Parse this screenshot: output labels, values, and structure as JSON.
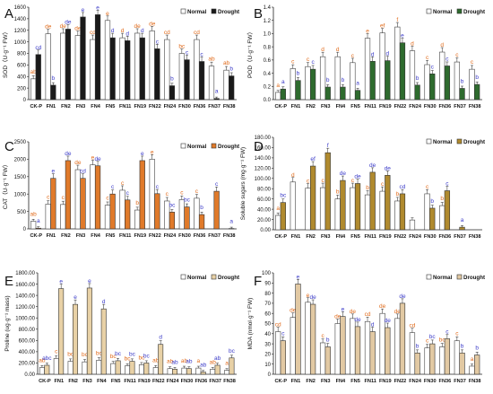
{
  "chart_data": [
    {
      "type": "bar",
      "panel": "A",
      "ylabel": "SOD（U·g⁻¹ FW）",
      "ylim": [
        0,
        1600
      ],
      "yticks": [
        0,
        200,
        400,
        600,
        800,
        1000,
        1200,
        1400,
        1600
      ],
      "tick_decimals": 0,
      "legend_placement": "top-right",
      "categories": [
        "CK-P",
        "FN1",
        "FN2",
        "FN3",
        "FN4",
        "FN5",
        "FN11",
        "FN19",
        "FN22",
        "FN24",
        "FN30",
        "FN36",
        "FN37",
        "FN38"
      ],
      "series": [
        {
          "name": "Normal",
          "color": "#ffffff",
          "values": [
            360,
            1140,
            1150,
            1110,
            1040,
            1370,
            1070,
            1150,
            1190,
            1040,
            800,
            1040,
            580,
            510
          ],
          "labels": [
            "ab",
            "de",
            "de",
            "de",
            "cd",
            "e",
            "d",
            "de",
            "de",
            "cd",
            "bc",
            "cd",
            "ab",
            "ab"
          ]
        },
        {
          "name": "Drought",
          "color": "#1a1a1a",
          "values": [
            780,
            250,
            1220,
            1430,
            1470,
            1070,
            1020,
            1070,
            880,
            240,
            690,
            660,
            20,
            410
          ],
          "labels": [
            "cd",
            "b",
            "de",
            "e",
            "e",
            "d",
            "d",
            "d",
            "c",
            "b",
            "c",
            "c",
            "a",
            "b"
          ]
        }
      ]
    },
    {
      "type": "bar",
      "panel": "B",
      "ylabel": "POD（U·g⁻¹ FW）",
      "ylim": [
        0,
        1.4
      ],
      "yticks": [
        0,
        0.2,
        0.4,
        0.6,
        0.8,
        1.0,
        1.2,
        1.4
      ],
      "tick_decimals": 1,
      "legend_placement": "top-right",
      "categories": [
        "CK-P",
        "FN1",
        "FN2",
        "FN3",
        "FN4",
        "FN5",
        "FN11",
        "FN19",
        "FN22",
        "FN24",
        "FN30",
        "FN36",
        "FN37",
        "FN38"
      ],
      "series": [
        {
          "name": "Normal",
          "color": "#ffffff",
          "values": [
            0.11,
            0.47,
            0.5,
            0.65,
            0.65,
            0.56,
            0.93,
            1.01,
            1.1,
            0.74,
            0.53,
            0.72,
            0.57,
            0.46
          ],
          "labels": [
            "a",
            "c",
            "c",
            "d",
            "d",
            "c",
            "e",
            "ef",
            "f",
            "d",
            "c",
            "d",
            "c",
            "c"
          ]
        },
        {
          "name": "Drought",
          "color": "#2e6b2e",
          "values": [
            0.16,
            0.29,
            0.46,
            0.19,
            0.19,
            0.14,
            0.58,
            0.59,
            0.86,
            0.22,
            0.39,
            0.51,
            0.17,
            0.23
          ],
          "labels": [
            "a",
            "b",
            "c",
            "b",
            "b",
            "a",
            "d",
            "d",
            "e",
            "b",
            "c",
            "c",
            "b",
            "b"
          ]
        }
      ]
    },
    {
      "type": "bar",
      "panel": "C",
      "ylabel": "CAT（U·g⁻¹ FW）",
      "ylim": [
        0,
        2500
      ],
      "yticks": [
        0,
        500,
        1000,
        1500,
        2000,
        2500
      ],
      "tick_decimals": 0,
      "legend_placement": "top-right",
      "categories": [
        "CK-P",
        "FN1",
        "FN2",
        "FN3",
        "FN4",
        "FN5",
        "FN11",
        "FN19",
        "FN22",
        "FN24",
        "FN30",
        "FN36",
        "FN37",
        "FN38"
      ],
      "series": [
        {
          "name": "Normal",
          "color": "#ffffff",
          "values": [
            220,
            710,
            700,
            1700,
            1840,
            680,
            1110,
            540,
            2000,
            800,
            840,
            880,
            5,
            5
          ],
          "labels": [
            "ab",
            "c",
            "c",
            "de",
            "e",
            "c",
            "c",
            "b",
            "e",
            "c",
            "c",
            "c",
            "",
            ""
          ]
        },
        {
          "name": "Drought",
          "color": "#e07a2a",
          "values": [
            20,
            1450,
            1960,
            1450,
            1810,
            1000,
            830,
            1960,
            1010,
            480,
            630,
            410,
            1080,
            10
          ],
          "labels": [
            "a",
            "e",
            "de",
            "cd",
            "de",
            "c",
            "c",
            "e",
            "c",
            "bc",
            "bc",
            "b",
            "c",
            "a"
          ]
        }
      ]
    },
    {
      "type": "bar",
      "panel": "D",
      "ylabel": "Soluble sugars (mg·g⁻¹ FW)",
      "ylim": [
        0,
        180
      ],
      "yticks": [
        0,
        20,
        40,
        60,
        80,
        100,
        120,
        140,
        160,
        180
      ],
      "tick_decimals": 2,
      "legend_placement": "top-right",
      "categories": [
        "CK-P",
        "FN1",
        "FN2",
        "FN3",
        "FN4",
        "FN5",
        "FN11",
        "FN19",
        "FN22",
        "FN24",
        "FN30",
        "FN36",
        "FN37",
        "FN38"
      ],
      "series": [
        {
          "name": "Normal",
          "color": "#ffffff",
          "values": [
            28,
            93,
            81,
            82,
            60,
            82,
            68,
            75,
            56,
            19,
            70,
            47,
            0,
            0
          ],
          "labels": [
            "a",
            "d",
            "c",
            "c",
            "b",
            "c",
            "b",
            "c",
            "b",
            "",
            "c",
            "b",
            "",
            ""
          ]
        },
        {
          "name": "Drought",
          "color": "#b08a2e",
          "values": [
            53,
            0,
            124,
            150,
            96,
            90,
            112,
            106,
            70,
            0,
            42,
            76,
            5,
            0
          ],
          "labels": [
            "bc",
            "",
            "ef",
            "f",
            "de",
            "de",
            "de",
            "de",
            "cd",
            "",
            "b",
            "c",
            "a",
            ""
          ]
        }
      ]
    },
    {
      "type": "bar",
      "panel": "E",
      "ylabel": "Proline (ug·g⁻¹ mass)",
      "ylim": [
        0,
        1800
      ],
      "yticks": [
        0,
        200,
        400,
        600,
        800,
        1000,
        1200,
        1400,
        1600,
        1800
      ],
      "tick_decimals": 2,
      "legend_placement": "top-right",
      "categories": [
        "CK-P",
        "FN1",
        "FN2",
        "FN3",
        "FN4",
        "FN5",
        "FN11",
        "FN19",
        "FN22",
        "FN24",
        "FN30",
        "FN36",
        "FN37",
        "FN38"
      ],
      "series": [
        {
          "name": "Normal",
          "color": "#ffffff",
          "values": [
            120,
            280,
            230,
            220,
            250,
            190,
            150,
            170,
            120,
            100,
            110,
            110,
            90,
            70
          ],
          "labels": [
            "ab",
            "c",
            "bc",
            "bc",
            "bc",
            "bc",
            "bc",
            "bc",
            "ab",
            "ab",
            "ab",
            "a",
            "ab",
            "a"
          ]
        },
        {
          "name": "Drought",
          "color": "#e8d1a6",
          "values": [
            160,
            1520,
            1240,
            1530,
            1160,
            240,
            230,
            200,
            530,
            90,
            100,
            40,
            160,
            290
          ],
          "labels": [
            "abc",
            "e",
            "e",
            "e",
            "d",
            "bc",
            "bc",
            "bc",
            "d",
            "ab",
            "ab",
            "ab",
            "ab",
            "bc"
          ]
        }
      ]
    },
    {
      "type": "bar",
      "panel": "F",
      "ylabel": "MDA (nmol·g⁻¹ FW)",
      "ylim": [
        0,
        100
      ],
      "yticks": [
        0,
        10,
        20,
        30,
        40,
        50,
        60,
        70,
        80,
        90,
        100
      ],
      "tick_decimals": 0,
      "legend_placement": "top-right",
      "categories": [
        "CK-P",
        "FN1",
        "FN2",
        "FN3",
        "FN4",
        "FN5",
        "FN11",
        "FN19",
        "FN22",
        "FN24",
        "FN30",
        "FN36",
        "FN37",
        "FN38"
      ],
      "series": [
        {
          "name": "Normal",
          "color": "#ffffff",
          "values": [
            42,
            56,
            71,
            31,
            50,
            55,
            52,
            60,
            55,
            41,
            26,
            27,
            33,
            8
          ],
          "labels": [
            "cd",
            "de",
            "e",
            "c",
            "de",
            "de",
            "cd",
            "de",
            "de",
            "cd",
            "c",
            "bc",
            "c",
            "a"
          ]
        },
        {
          "name": "Drought",
          "color": "#e2c9a3",
          "values": [
            33,
            89,
            69,
            27,
            57,
            47,
            42,
            46,
            70,
            21,
            30,
            35,
            21,
            19
          ],
          "labels": [
            "c",
            "e",
            "de",
            "b",
            "e",
            "de",
            "d",
            "de",
            "de",
            "b",
            "bc",
            "c",
            "b",
            "b"
          ]
        }
      ]
    }
  ]
}
